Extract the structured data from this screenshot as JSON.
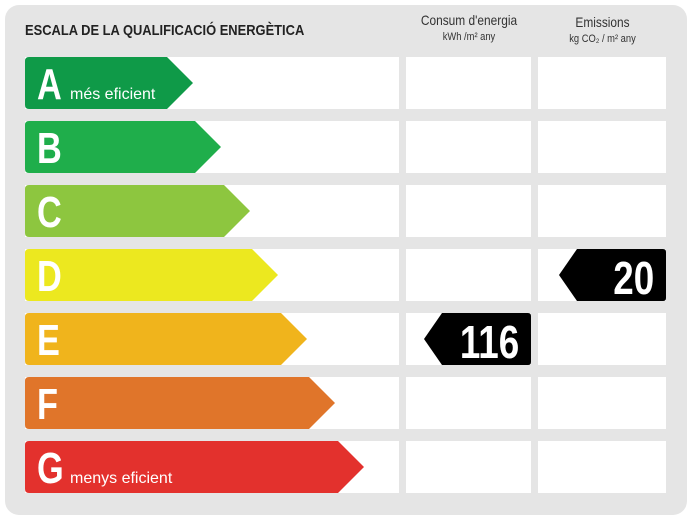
{
  "title": "ESCALA DE LA QUALIFICACIÓ ENERGÈTICA",
  "columns": {
    "consumption": {
      "label": "Consum d'energia",
      "unit": "kWh /m² any"
    },
    "emissions": {
      "label": "Emissions",
      "unit": "kg CO₂ / m² any"
    }
  },
  "ratings": [
    {
      "letter": "A",
      "sublabel": "més eficient",
      "color": "#0f9a48"
    },
    {
      "letter": "B",
      "sublabel": "",
      "color": "#1fae4b"
    },
    {
      "letter": "C",
      "sublabel": "",
      "color": "#8dc63f"
    },
    {
      "letter": "D",
      "sublabel": "",
      "color": "#ece81f"
    },
    {
      "letter": "E",
      "sublabel": "",
      "color": "#f0b41c"
    },
    {
      "letter": "F",
      "sublabel": "",
      "color": "#e0752a"
    },
    {
      "letter": "G",
      "sublabel": "menys eficient",
      "color": "#e3312d"
    }
  ],
  "consumption_value": {
    "value": "116",
    "rating": "E"
  },
  "emissions_value": {
    "value": "20",
    "rating": "D"
  }
}
